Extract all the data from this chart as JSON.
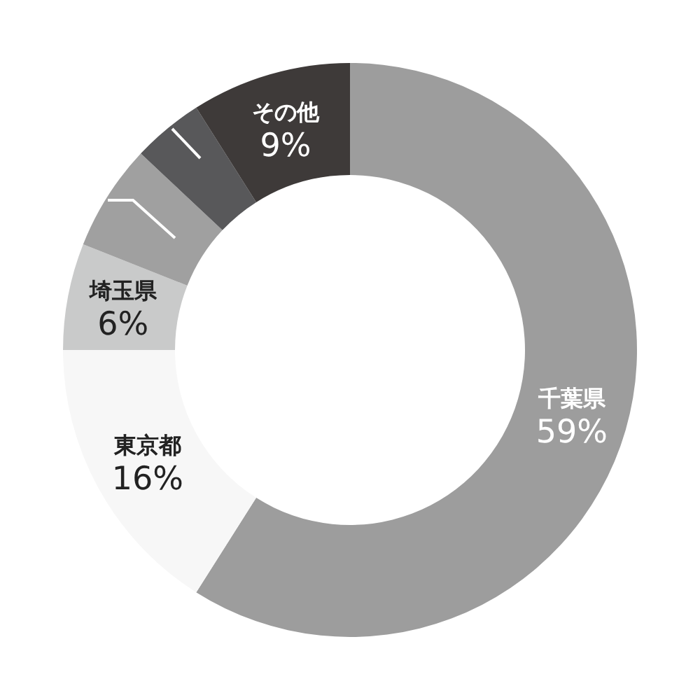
{
  "chart_data": {
    "type": "donut",
    "categories": [
      "千葉県",
      "東京都",
      "埼玉県",
      null,
      null,
      "その他"
    ],
    "values": [
      59,
      16,
      6,
      6,
      4,
      9
    ],
    "value_labels": [
      "59%",
      "16%",
      "6%",
      null,
      null,
      "9%"
    ],
    "colors": [
      "#9d9d9d",
      "#f7f7f7",
      "#c9caca",
      "#a0a0a0",
      "#58585a",
      "#3e3a39"
    ]
  }
}
